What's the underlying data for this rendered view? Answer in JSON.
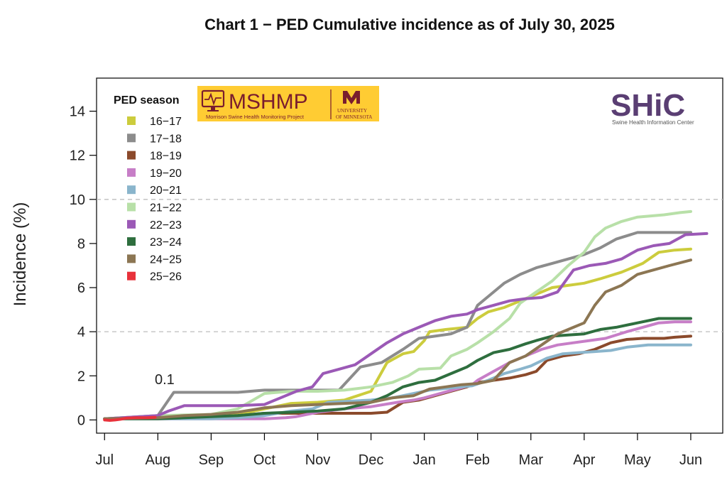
{
  "chart_data": {
    "type": "line",
    "title": "Chart 1 − PED Cumulative incidence as of July 30, 2025",
    "ylabel": "Incidence (%)",
    "xlabel": "",
    "x_tick_labels": [
      "Jul",
      "Aug",
      "Sep",
      "Oct",
      "Nov",
      "Dec",
      "Jan",
      "Feb",
      "Mar",
      "Apr",
      "May",
      "Jun"
    ],
    "x_unit": "months since July 1 of season",
    "xlim": [
      -0.15,
      11.6
    ],
    "ylim": [
      -0.6,
      15.5
    ],
    "y_ticks": [
      0,
      2,
      4,
      6,
      8,
      10,
      12,
      14
    ],
    "reference_lines": [
      4,
      10
    ],
    "legend_title": "PED season",
    "legend_position": "top-left",
    "annotation": "0.1",
    "series": [
      {
        "name": "16−17",
        "color": "#cccc3d",
        "points": [
          [
            0,
            0.05
          ],
          [
            1,
            0.1
          ],
          [
            2,
            0.15
          ],
          [
            2.5,
            0.25
          ],
          [
            3,
            0.5
          ],
          [
            3.5,
            0.75
          ],
          [
            4,
            0.8
          ],
          [
            4.5,
            0.9
          ],
          [
            5,
            1.3
          ],
          [
            5.3,
            2.6
          ],
          [
            5.6,
            3.0
          ],
          [
            5.8,
            3.1
          ],
          [
            6,
            3.6
          ],
          [
            6.1,
            4.0
          ],
          [
            6.4,
            4.1
          ],
          [
            6.6,
            4.15
          ],
          [
            6.8,
            4.2
          ],
          [
            7,
            4.6
          ],
          [
            7.2,
            4.9
          ],
          [
            7.5,
            5.1
          ],
          [
            7.8,
            5.4
          ],
          [
            8.1,
            5.7
          ],
          [
            8.4,
            6.0
          ],
          [
            8.7,
            6.1
          ],
          [
            9,
            6.2
          ],
          [
            9.3,
            6.4
          ],
          [
            9.7,
            6.7
          ],
          [
            10.1,
            7.1
          ],
          [
            10.4,
            7.6
          ],
          [
            10.7,
            7.7
          ],
          [
            11,
            7.75
          ]
        ]
      },
      {
        "name": "17−18",
        "color": "#8c8c8c",
        "points": [
          [
            0,
            0.05
          ],
          [
            1,
            0.2
          ],
          [
            1.3,
            1.25
          ],
          [
            1.6,
            1.25
          ],
          [
            2,
            1.25
          ],
          [
            2.5,
            1.25
          ],
          [
            3,
            1.35
          ],
          [
            3.5,
            1.35
          ],
          [
            4,
            1.35
          ],
          [
            4.4,
            1.35
          ],
          [
            4.8,
            2.4
          ],
          [
            5.2,
            2.6
          ],
          [
            5.6,
            3.2
          ],
          [
            5.9,
            3.7
          ],
          [
            6.2,
            3.8
          ],
          [
            6.5,
            3.9
          ],
          [
            6.8,
            4.2
          ],
          [
            7,
            5.2
          ],
          [
            7.2,
            5.6
          ],
          [
            7.5,
            6.2
          ],
          [
            7.8,
            6.6
          ],
          [
            8.1,
            6.9
          ],
          [
            8.4,
            7.1
          ],
          [
            8.7,
            7.3
          ],
          [
            9,
            7.5
          ],
          [
            9.3,
            7.8
          ],
          [
            9.6,
            8.2
          ],
          [
            10,
            8.5
          ],
          [
            10.5,
            8.5
          ],
          [
            11,
            8.5
          ]
        ]
      },
      {
        "name": "18−19",
        "color": "#8b4a2b",
        "points": [
          [
            0,
            0.05
          ],
          [
            1,
            0.1
          ],
          [
            2,
            0.15
          ],
          [
            2.5,
            0.2
          ],
          [
            3,
            0.3
          ],
          [
            3.5,
            0.3
          ],
          [
            4,
            0.3
          ],
          [
            4.5,
            0.3
          ],
          [
            5,
            0.3
          ],
          [
            5.3,
            0.35
          ],
          [
            5.6,
            0.8
          ],
          [
            5.9,
            0.9
          ],
          [
            6.2,
            1.1
          ],
          [
            6.5,
            1.3
          ],
          [
            6.8,
            1.5
          ],
          [
            7,
            1.7
          ],
          [
            7.3,
            1.8
          ],
          [
            7.6,
            1.9
          ],
          [
            7.9,
            2.05
          ],
          [
            8.1,
            2.2
          ],
          [
            8.3,
            2.7
          ],
          [
            8.6,
            2.9
          ],
          [
            8.9,
            3.0
          ],
          [
            9.2,
            3.2
          ],
          [
            9.5,
            3.5
          ],
          [
            9.8,
            3.65
          ],
          [
            10.1,
            3.7
          ],
          [
            10.5,
            3.7
          ],
          [
            10.7,
            3.75
          ],
          [
            11,
            3.8
          ]
        ]
      },
      {
        "name": "19−20",
        "color": "#c77ec7",
        "points": [
          [
            0,
            0.05
          ],
          [
            1,
            0.05
          ],
          [
            2,
            0.05
          ],
          [
            2.5,
            0.05
          ],
          [
            3,
            0.05
          ],
          [
            3.4,
            0.1
          ],
          [
            3.6,
            0.15
          ],
          [
            4,
            0.35
          ],
          [
            4.5,
            0.5
          ],
          [
            5,
            0.6
          ],
          [
            5.5,
            0.8
          ],
          [
            5.8,
            0.9
          ],
          [
            6,
            1.0
          ],
          [
            6.3,
            1.2
          ],
          [
            6.6,
            1.4
          ],
          [
            6.9,
            1.6
          ],
          [
            7,
            1.8
          ],
          [
            7.3,
            2.2
          ],
          [
            7.6,
            2.6
          ],
          [
            7.9,
            2.9
          ],
          [
            8.2,
            3.2
          ],
          [
            8.5,
            3.4
          ],
          [
            8.8,
            3.5
          ],
          [
            9.1,
            3.6
          ],
          [
            9.4,
            3.7
          ],
          [
            9.8,
            4.0
          ],
          [
            10.1,
            4.2
          ],
          [
            10.4,
            4.4
          ],
          [
            10.7,
            4.45
          ],
          [
            11,
            4.45
          ]
        ]
      },
      {
        "name": "20−21",
        "color": "#8ab5cc",
        "points": [
          [
            0,
            0.05
          ],
          [
            1,
            0.05
          ],
          [
            2,
            0.05
          ],
          [
            2.5,
            0.1
          ],
          [
            3,
            0.2
          ],
          [
            3.5,
            0.4
          ],
          [
            3.9,
            0.5
          ],
          [
            4.2,
            0.8
          ],
          [
            4.6,
            0.85
          ],
          [
            5,
            0.9
          ],
          [
            5.4,
            1.0
          ],
          [
            5.8,
            1.2
          ],
          [
            6.1,
            1.35
          ],
          [
            6.5,
            1.45
          ],
          [
            6.9,
            1.55
          ],
          [
            7.2,
            1.8
          ],
          [
            7.5,
            2.1
          ],
          [
            7.8,
            2.3
          ],
          [
            8,
            2.45
          ],
          [
            8.3,
            2.8
          ],
          [
            8.6,
            3.0
          ],
          [
            8.9,
            3.05
          ],
          [
            9.2,
            3.1
          ],
          [
            9.5,
            3.15
          ],
          [
            9.8,
            3.3
          ],
          [
            10.2,
            3.4
          ],
          [
            10.6,
            3.4
          ],
          [
            11,
            3.4
          ]
        ]
      },
      {
        "name": "21−22",
        "color": "#b8e0a8",
        "points": [
          [
            0,
            0.05
          ],
          [
            1,
            0.2
          ],
          [
            2,
            0.25
          ],
          [
            2.5,
            0.5
          ],
          [
            3,
            1.2
          ],
          [
            3.5,
            1.3
          ],
          [
            4,
            1.3
          ],
          [
            4.5,
            1.35
          ],
          [
            5,
            1.5
          ],
          [
            5.4,
            1.7
          ],
          [
            5.7,
            2.0
          ],
          [
            5.9,
            2.3
          ],
          [
            6.3,
            2.35
          ],
          [
            6.5,
            2.9
          ],
          [
            6.8,
            3.2
          ],
          [
            7,
            3.5
          ],
          [
            7.3,
            4.0
          ],
          [
            7.6,
            4.6
          ],
          [
            7.8,
            5.3
          ],
          [
            8.1,
            5.8
          ],
          [
            8.4,
            6.3
          ],
          [
            8.7,
            7.0
          ],
          [
            9,
            7.6
          ],
          [
            9.2,
            8.3
          ],
          [
            9.4,
            8.7
          ],
          [
            9.7,
            9.0
          ],
          [
            10,
            9.2
          ],
          [
            10.5,
            9.3
          ],
          [
            10.8,
            9.4
          ],
          [
            11,
            9.45
          ]
        ]
      },
      {
        "name": "22−23",
        "color": "#9b59b6",
        "points": [
          [
            0,
            0.05
          ],
          [
            1,
            0.2
          ],
          [
            1.2,
            0.4
          ],
          [
            1.5,
            0.65
          ],
          [
            2,
            0.65
          ],
          [
            2.5,
            0.65
          ],
          [
            3,
            0.7
          ],
          [
            3.3,
            1.0
          ],
          [
            3.6,
            1.3
          ],
          [
            3.9,
            1.5
          ],
          [
            4.1,
            2.1
          ],
          [
            4.4,
            2.3
          ],
          [
            4.7,
            2.5
          ],
          [
            5,
            3.0
          ],
          [
            5.3,
            3.5
          ],
          [
            5.6,
            3.9
          ],
          [
            5.9,
            4.2
          ],
          [
            6.2,
            4.5
          ],
          [
            6.5,
            4.7
          ],
          [
            6.8,
            4.8
          ],
          [
            7,
            5.0
          ],
          [
            7.3,
            5.2
          ],
          [
            7.6,
            5.4
          ],
          [
            7.9,
            5.5
          ],
          [
            8.2,
            5.55
          ],
          [
            8.5,
            5.8
          ],
          [
            8.8,
            6.8
          ],
          [
            9.1,
            7.0
          ],
          [
            9.4,
            7.1
          ],
          [
            9.7,
            7.3
          ],
          [
            10,
            7.7
          ],
          [
            10.3,
            7.9
          ],
          [
            10.6,
            8.0
          ],
          [
            10.9,
            8.4
          ],
          [
            11.3,
            8.45
          ]
        ]
      },
      {
        "name": "23−24",
        "color": "#2e6e3e",
        "points": [
          [
            0,
            0.05
          ],
          [
            1,
            0.05
          ],
          [
            1.5,
            0.1
          ],
          [
            2,
            0.15
          ],
          [
            2.5,
            0.2
          ],
          [
            3,
            0.3
          ],
          [
            3.5,
            0.35
          ],
          [
            4,
            0.4
          ],
          [
            4.5,
            0.5
          ],
          [
            5,
            0.8
          ],
          [
            5.3,
            1.1
          ],
          [
            5.6,
            1.5
          ],
          [
            5.9,
            1.7
          ],
          [
            6.2,
            1.8
          ],
          [
            6.5,
            2.1
          ],
          [
            6.8,
            2.4
          ],
          [
            7,
            2.7
          ],
          [
            7.3,
            3.05
          ],
          [
            7.6,
            3.2
          ],
          [
            7.9,
            3.45
          ],
          [
            8.1,
            3.6
          ],
          [
            8.4,
            3.8
          ],
          [
            8.7,
            3.85
          ],
          [
            9,
            3.9
          ],
          [
            9.3,
            4.1
          ],
          [
            9.6,
            4.2
          ],
          [
            10,
            4.4
          ],
          [
            10.4,
            4.6
          ],
          [
            10.8,
            4.6
          ],
          [
            11,
            4.6
          ]
        ]
      },
      {
        "name": "24−25",
        "color": "#8c7653",
        "points": [
          [
            0,
            0.05
          ],
          [
            1,
            0.1
          ],
          [
            1.5,
            0.2
          ],
          [
            2,
            0.25
          ],
          [
            2.5,
            0.35
          ],
          [
            3,
            0.55
          ],
          [
            3.5,
            0.65
          ],
          [
            4,
            0.7
          ],
          [
            4.5,
            0.75
          ],
          [
            5,
            0.8
          ],
          [
            5.4,
            1.0
          ],
          [
            5.8,
            1.1
          ],
          [
            6.1,
            1.4
          ],
          [
            6.4,
            1.5
          ],
          [
            6.7,
            1.6
          ],
          [
            7,
            1.65
          ],
          [
            7.3,
            1.8
          ],
          [
            7.6,
            2.6
          ],
          [
            7.9,
            2.9
          ],
          [
            8.2,
            3.4
          ],
          [
            8.5,
            3.9
          ],
          [
            8.8,
            4.2
          ],
          [
            9,
            4.4
          ],
          [
            9.2,
            5.2
          ],
          [
            9.4,
            5.8
          ],
          [
            9.7,
            6.1
          ],
          [
            10,
            6.6
          ],
          [
            10.3,
            6.8
          ],
          [
            10.6,
            7.0
          ],
          [
            11,
            7.25
          ]
        ]
      },
      {
        "name": "25−26",
        "color": "#e8323b",
        "points": [
          [
            0,
            0.0
          ],
          [
            0.1,
            -0.02
          ],
          [
            0.2,
            0.0
          ],
          [
            0.3,
            0.03
          ],
          [
            0.4,
            0.08
          ],
          [
            0.6,
            0.1
          ],
          [
            0.8,
            0.1
          ],
          [
            0.95,
            0.12
          ]
        ]
      }
    ]
  },
  "logos": {
    "mshmp_main": "MSHMP",
    "mshmp_sub": "Morrison Swine Health Monitoring Project",
    "university_line1": "UNIVERSITY",
    "university_line2": "OF MINNESOTA",
    "shic_word": "SHiC",
    "shic_sub": "Swine Health Information Center"
  },
  "colors": {
    "background": "#ffffff",
    "mshmp_yellow": "#ffcc33",
    "maroon": "#7a1d2e",
    "shic_purple": "#5a3e73",
    "gridline": "#bdbdbd"
  }
}
